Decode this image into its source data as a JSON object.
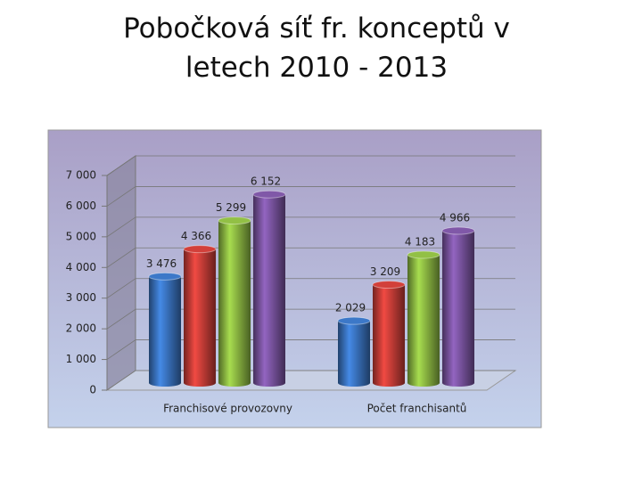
{
  "chart_data": {
    "type": "bar",
    "title": "Pobočková síť fr. konceptů v letech 2010 - 2013",
    "categories": [
      "Franchisové provozovny",
      "Počet franchisantů"
    ],
    "series": [
      {
        "color": "#3c78c8",
        "values": [
          3476,
          2029
        ],
        "value_labels": [
          "3 476",
          "2 029"
        ]
      },
      {
        "color": "#d2403a",
        "values": [
          4366,
          3209
        ],
        "value_labels": [
          "4 366",
          "3 209"
        ]
      },
      {
        "color": "#92c045",
        "values": [
          5299,
          4183
        ],
        "value_labels": [
          "5 299",
          "4 183"
        ]
      },
      {
        "color": "#8058a8",
        "values": [
          6152,
          4966
        ],
        "value_labels": [
          "6 152",
          "4 966"
        ]
      }
    ],
    "ylim": [
      0,
      7000
    ],
    "yticks": [
      0,
      {
        "value": 1000,
        "label": "1 000"
      },
      {
        "value": 2000,
        "label": "2 000"
      },
      {
        "value": 3000,
        "label": "3 000"
      },
      {
        "value": 4000,
        "label": "4 000"
      },
      {
        "value": 5000,
        "label": "5 000"
      },
      {
        "value": 6000,
        "label": "6 000"
      },
      {
        "value": 7000,
        "label": "7 000"
      }
    ],
    "grid": true
  }
}
